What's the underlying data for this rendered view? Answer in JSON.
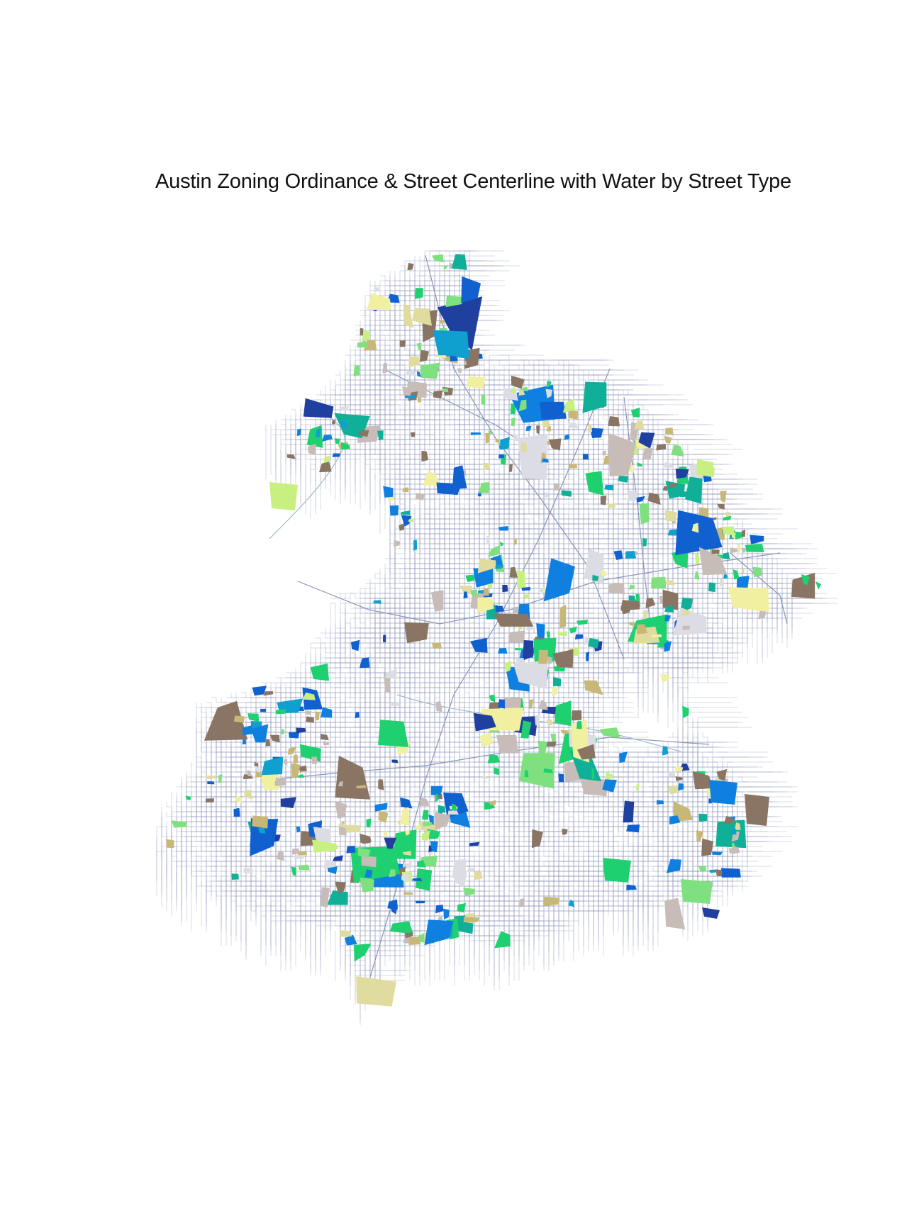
{
  "title": "Austin Zoning Ordinance & Street Centerline with Water by Street Type",
  "map": {
    "background_color": "#ffffff",
    "street_color": "#8a94b8",
    "water_color": "#9fb8c8",
    "zoning_palette": {
      "brown": "#8a7565",
      "light_gray_brown": "#c8bcb8",
      "tan": "#c8b878",
      "light_tan": "#e0dca0",
      "pale_yellow": "#f0f0a0",
      "lime": "#c8f080",
      "light_green": "#7ee07e",
      "green": "#1ed070",
      "teal": "#10b098",
      "cyan": "#10a0d0",
      "blue": "#1080e0",
      "royal_blue": "#1060d0",
      "navy": "#2040a0",
      "light_gray": "#dcdce4"
    }
  }
}
